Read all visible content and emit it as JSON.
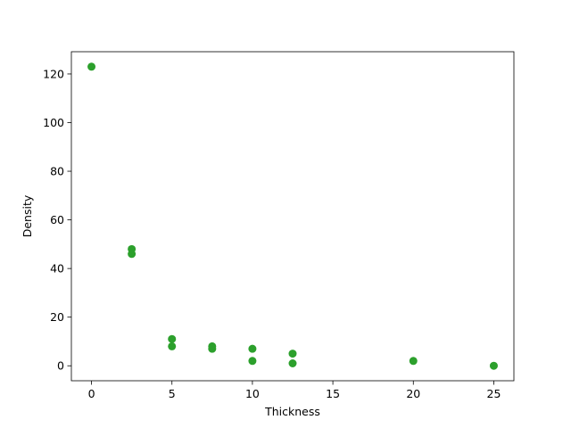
{
  "chart_data": {
    "type": "scatter",
    "title": "",
    "xlabel": "Thickness",
    "ylabel": "Density",
    "xlim": [
      -1.25,
      26.25
    ],
    "ylim": [
      -6.15,
      129.15
    ],
    "x_ticks": [
      0,
      5,
      10,
      15,
      20,
      25
    ],
    "y_ticks": [
      0,
      20,
      40,
      60,
      80,
      100,
      120
    ],
    "grid": false,
    "marker_color": "#2ca02c",
    "series": [
      {
        "points": [
          {
            "x": 0,
            "y": 123
          },
          {
            "x": 2.5,
            "y": 48
          },
          {
            "x": 2.5,
            "y": 46
          },
          {
            "x": 5,
            "y": 11
          },
          {
            "x": 5,
            "y": 8
          },
          {
            "x": 7.5,
            "y": 8
          },
          {
            "x": 7.5,
            "y": 7
          },
          {
            "x": 10,
            "y": 7
          },
          {
            "x": 10,
            "y": 2
          },
          {
            "x": 12.5,
            "y": 5
          },
          {
            "x": 12.5,
            "y": 1
          },
          {
            "x": 20,
            "y": 2
          },
          {
            "x": 25,
            "y": 0
          }
        ]
      }
    ]
  }
}
